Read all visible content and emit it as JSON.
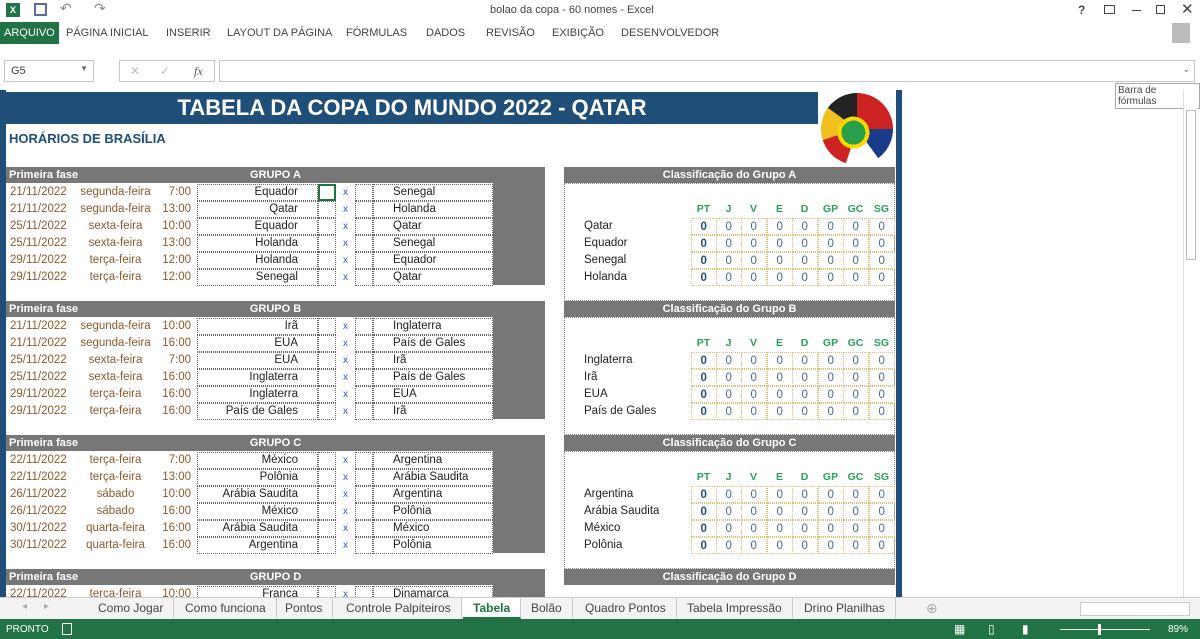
{
  "window": {
    "title": "bolao da copa - 60 nomes - Excel",
    "controls": [
      "?",
      "restore-ribbon",
      "minimize",
      "maximize",
      "close"
    ]
  },
  "ribbon": {
    "tabs": [
      "ARQUIVO",
      "PÁGINA INICIAL",
      "INSERIR",
      "LAYOUT DA PÁGINA",
      "FÓRMULAS",
      "DADOS",
      "REVISÃO",
      "EXIBIÇÃO",
      "DESENVOLVEDOR"
    ]
  },
  "formula_bar": {
    "name_box": "G5",
    "fx": "fx",
    "value": "",
    "tooltip": "Barra de fórmulas"
  },
  "sheet": {
    "title": "TABELA DA COPA DO MUNDO 2022 - QATAR",
    "subtitle": "HORÁRIOS DE BRASÍLIA",
    "phase_label": "Primeira fase",
    "vs": "x",
    "stat_headers": [
      "PT",
      "J",
      "V",
      "E",
      "D",
      "GP",
      "GC",
      "SG"
    ],
    "colors": {
      "title_band": "#1f4e79",
      "header_gray": "#777777",
      "stat_header": "#2aa05a",
      "date_text": "#8a5a2b",
      "vs": "#3355cc"
    },
    "groups": [
      {
        "name": "GRUPO A",
        "class_title": "Classificação do Grupo A",
        "matches": [
          [
            "21/11/2022",
            "segunda-feira",
            "7:00",
            "Equador",
            "Senegal"
          ],
          [
            "21/11/2022",
            "segunda-feira",
            "13:00",
            "Qatar",
            "Holanda"
          ],
          [
            "25/11/2022",
            "sexta-feira",
            "10:00",
            "Equador",
            "Qatar"
          ],
          [
            "25/11/2022",
            "sexta-feira",
            "13:00",
            "Holanda",
            "Senegal"
          ],
          [
            "29/11/2022",
            "terça-feira",
            "12:00",
            "Holanda",
            "Equador"
          ],
          [
            "29/11/2022",
            "terça-feira",
            "12:00",
            "Senegal",
            "Qatar"
          ]
        ],
        "standings": [
          [
            "Qatar",
            0,
            0,
            0,
            0,
            0,
            0,
            0,
            0
          ],
          [
            "Equador",
            0,
            0,
            0,
            0,
            0,
            0,
            0,
            0
          ],
          [
            "Senegal",
            0,
            0,
            0,
            0,
            0,
            0,
            0,
            0
          ],
          [
            "Holanda",
            0,
            0,
            0,
            0,
            0,
            0,
            0,
            0
          ]
        ]
      },
      {
        "name": "GRUPO B",
        "class_title": "Classificação do Grupo B",
        "matches": [
          [
            "21/11/2022",
            "segunda-feira",
            "10:00",
            "Irã",
            "Inglaterra"
          ],
          [
            "21/11/2022",
            "segunda-feira",
            "16:00",
            "EUA",
            "País de Gales"
          ],
          [
            "25/11/2022",
            "sexta-feira",
            "7:00",
            "EUA",
            "Irã"
          ],
          [
            "25/11/2022",
            "sexta-feira",
            "16:00",
            "Inglaterra",
            "País de Gales"
          ],
          [
            "29/11/2022",
            "terça-feira",
            "16:00",
            "Inglaterra",
            "EUA"
          ],
          [
            "29/11/2022",
            "terça-feira",
            "16:00",
            "País de Gales",
            "Irã"
          ]
        ],
        "standings": [
          [
            "Inglaterra",
            0,
            0,
            0,
            0,
            0,
            0,
            0,
            0
          ],
          [
            "Irã",
            0,
            0,
            0,
            0,
            0,
            0,
            0,
            0
          ],
          [
            "EUA",
            0,
            0,
            0,
            0,
            0,
            0,
            0,
            0
          ],
          [
            "País de Gales",
            0,
            0,
            0,
            0,
            0,
            0,
            0,
            0
          ]
        ]
      },
      {
        "name": "GRUPO C",
        "class_title": "Classificação do Grupo C",
        "matches": [
          [
            "22/11/2022",
            "terça-feira",
            "7:00",
            "México",
            "Argentina"
          ],
          [
            "22/11/2022",
            "terça-feira",
            "13:00",
            "Polônia",
            "Arábia Saudita"
          ],
          [
            "26/11/2022",
            "sábado",
            "10:00",
            "Arábia Saudita",
            "Argentina"
          ],
          [
            "26/11/2022",
            "sábado",
            "16:00",
            "México",
            "Polônia"
          ],
          [
            "30/11/2022",
            "quarta-feira",
            "16:00",
            "Arábia Saudita",
            "México"
          ],
          [
            "30/11/2022",
            "quarta-feira",
            "16:00",
            "Argentina",
            "Polônia"
          ]
        ],
        "standings": [
          [
            "Argentina",
            0,
            0,
            0,
            0,
            0,
            0,
            0,
            0
          ],
          [
            "Arábia Saudita",
            0,
            0,
            0,
            0,
            0,
            0,
            0,
            0
          ],
          [
            "México",
            0,
            0,
            0,
            0,
            0,
            0,
            0,
            0
          ],
          [
            "Polônia",
            0,
            0,
            0,
            0,
            0,
            0,
            0,
            0
          ]
        ]
      },
      {
        "name": "GRUPO D",
        "class_title": "Classificação do Grupo D",
        "matches": [
          [
            "22/11/2022",
            "terça-feira",
            "10:00",
            "França",
            "Dinamarca"
          ]
        ],
        "standings": []
      }
    ]
  },
  "sheet_tabs": {
    "items": [
      "Como Jogar",
      "Como funciona",
      "Pontos",
      "Controle Palpiteiros",
      "Tabela",
      "Bolão",
      "Quadro Pontos",
      "Tabela Impressão",
      "Drino Planilhas"
    ],
    "active": "Tabela"
  },
  "status": {
    "text": "PRONTO",
    "zoom": "89%"
  }
}
